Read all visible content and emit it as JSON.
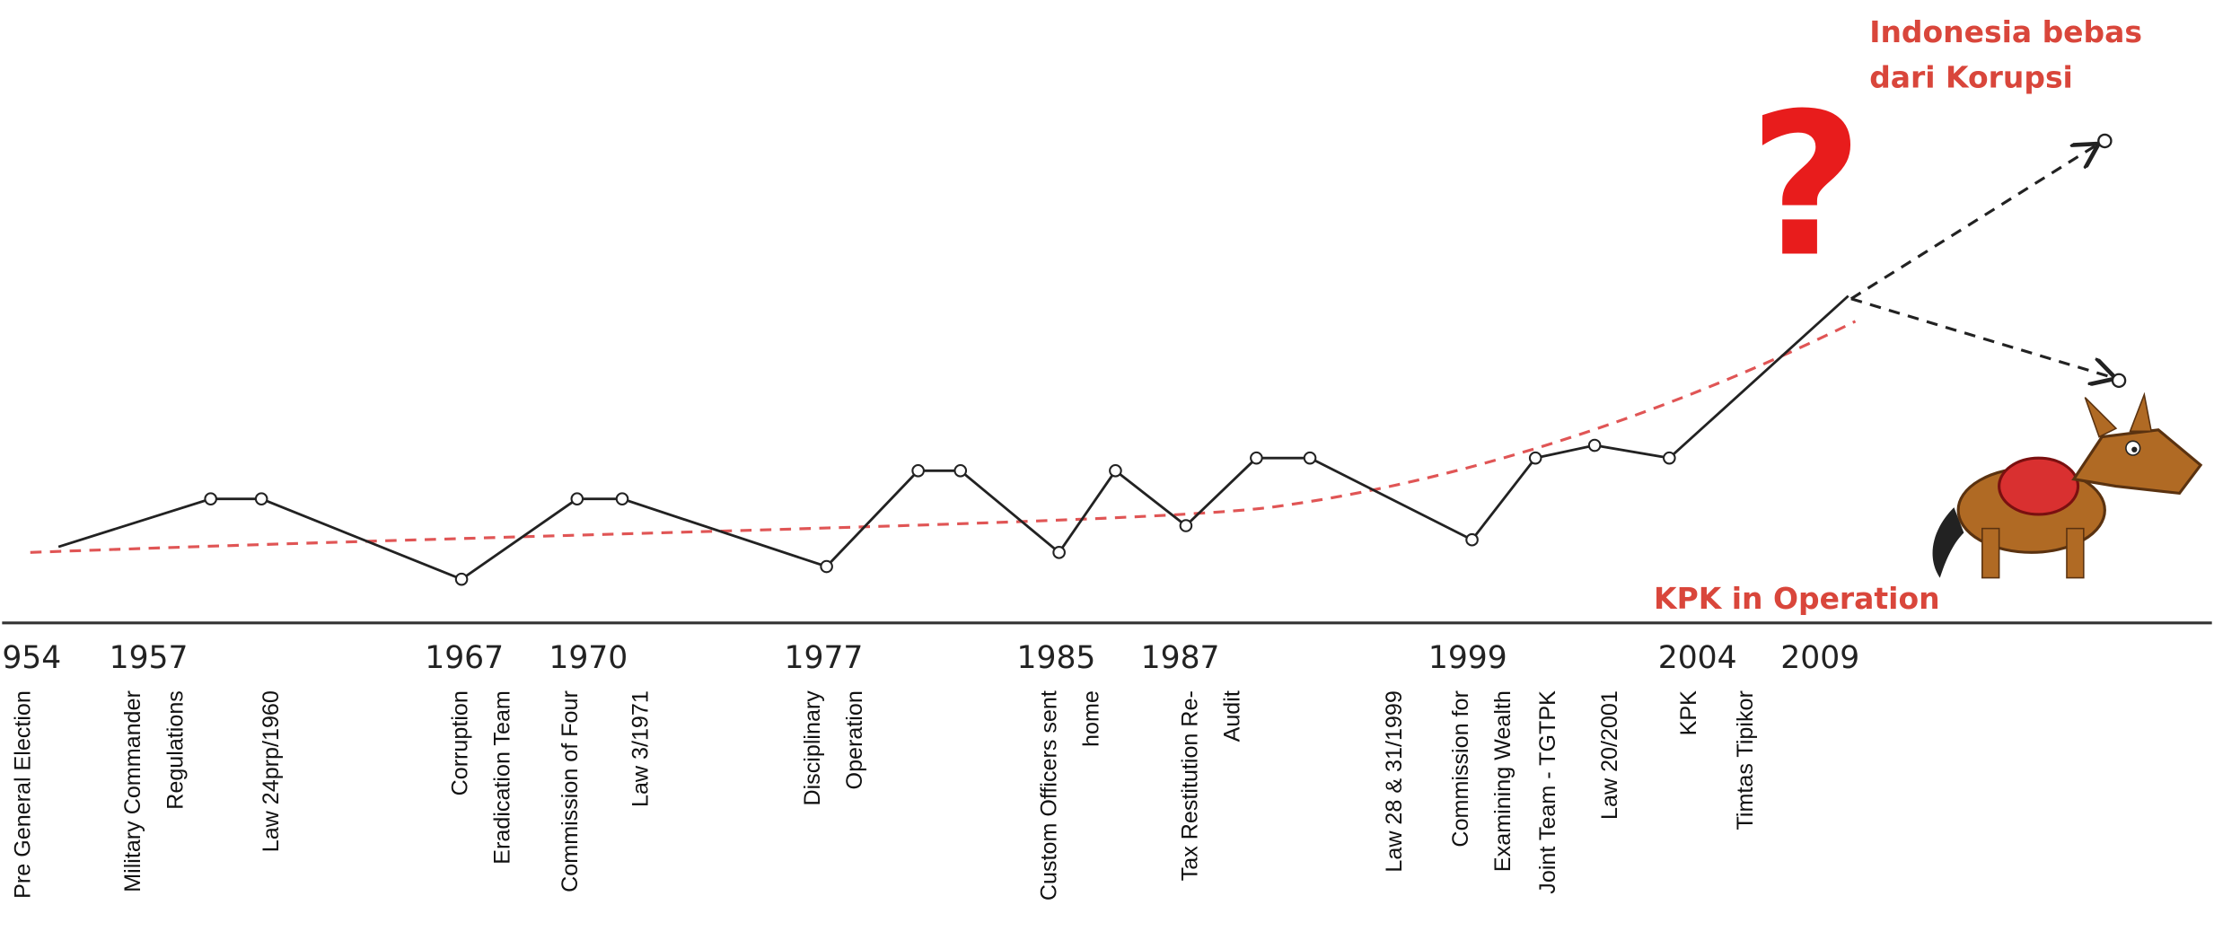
{
  "annotations": {
    "goal_line_1": "Indonesia bebas",
    "goal_line_2": "dari Korupsi",
    "question": "?",
    "kpk": "KPK in Operation"
  },
  "years": [
    "954",
    "1957",
    "1967",
    "1970",
    "1977",
    "1985",
    "1987",
    "1999",
    "2004",
    "2009"
  ],
  "events": [
    {
      "lines": [
        "Pre General Election"
      ]
    },
    {
      "lines": [
        "Military Commander",
        "Regulations"
      ]
    },
    {
      "lines": [
        "Law 24prp/1960"
      ]
    },
    {
      "lines": [
        "Corruption",
        "Eradication Team"
      ]
    },
    {
      "lines": [
        "Commission of Four"
      ]
    },
    {
      "lines": [
        "Law 3/1971"
      ]
    },
    {
      "lines": [
        "Disciplinary",
        "Operation"
      ]
    },
    {
      "lines": [
        "Custom Officers sent",
        "home"
      ]
    },
    {
      "lines": [
        "Tax Restitution Re-",
        "Audit"
      ]
    },
    {
      "lines": [
        "Law 28 & 31/1999"
      ]
    },
    {
      "lines": [
        "Commission for",
        "Examining Wealth"
      ]
    },
    {
      "lines": [
        "Joint Team - TGTPK"
      ]
    },
    {
      "lines": [
        "Law 20/2001"
      ]
    },
    {
      "lines": [
        "KPK"
      ]
    },
    {
      "lines": [
        "Timtas Tipikor"
      ]
    }
  ]
}
